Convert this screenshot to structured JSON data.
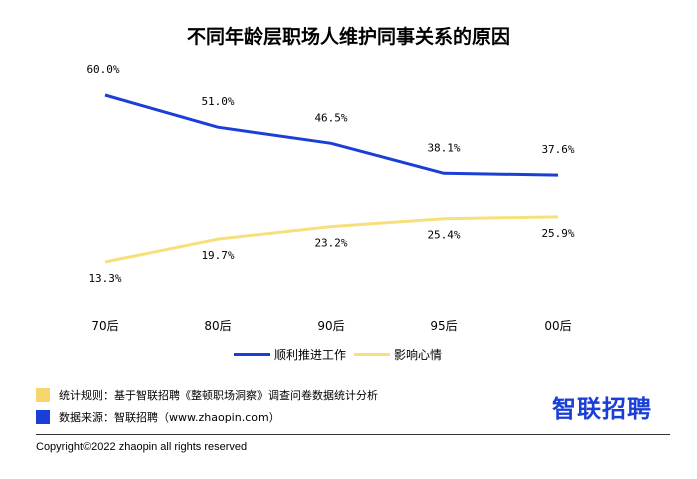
{
  "chart_data": {
    "type": "line",
    "title": "不同年龄层职场人维护同事关系的原因",
    "categories": [
      "70后",
      "80后",
      "90后",
      "95后",
      "00后"
    ],
    "series": [
      {
        "name": "顺利推进工作",
        "values": [
          60.0,
          51.0,
          46.5,
          38.1,
          37.6
        ],
        "labels": [
          "60.0%",
          "51.0%",
          "46.5%",
          "38.1%",
          "37.6%"
        ],
        "color": "#1a3fd6"
      },
      {
        "name": "影响心情",
        "values": [
          13.3,
          19.7,
          23.2,
          25.4,
          25.9
        ],
        "labels": [
          "13.3%",
          "19.7%",
          "23.2%",
          "25.4%",
          "25.9%"
        ],
        "color": "#f7e07a"
      }
    ],
    "legend_position": "bottom",
    "grid": false
  },
  "notes": {
    "rule_label": "统计规则：基于智联招聘《整顿职场洞察》调查问卷数据统计分析",
    "rule_color": "#f5d76e",
    "source_label": "数据来源：智联招聘（www.zhaopin.com）",
    "source_color": "#1a3fd6"
  },
  "brand": {
    "logo_text": "智联招聘",
    "logo_color": "#1a3fd6"
  },
  "footer": {
    "copyright": "Copyright©2022 zhaopin all rights reserved"
  }
}
